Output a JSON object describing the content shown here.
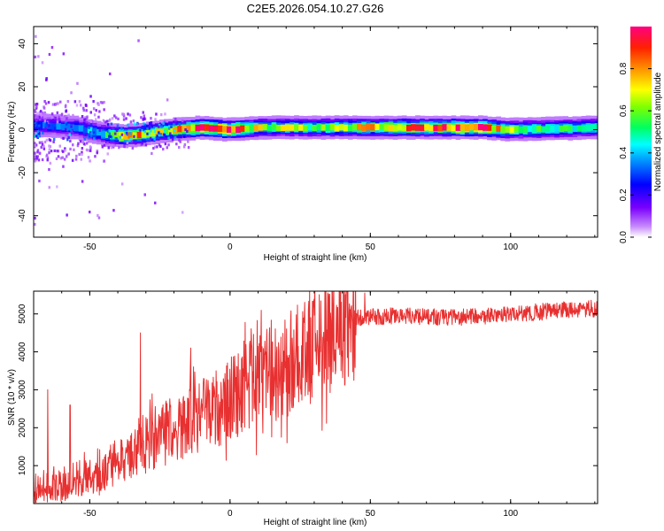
{
  "title": "C2E5.2026.054.10.27.G26",
  "chart_data": [
    {
      "type": "heatmap",
      "xlabel": "Height of straight line (km)",
      "ylabel": "Frequency (Hz)",
      "xlim": [
        -70,
        131
      ],
      "ylim": [
        -50,
        48
      ],
      "xticks": [
        "-50",
        "0",
        "50",
        "100"
      ],
      "yticks": [
        "-40",
        "-20",
        "0",
        "20",
        "40"
      ],
      "colorbar": {
        "label": "Normalized spectral amplitude",
        "range": [
          0,
          1
        ],
        "ticks": [
          "0.0",
          "0.2",
          "0.4",
          "0.6",
          "0.8"
        ]
      },
      "ridge": {
        "description": "dominant frequency ridge near 0 Hz",
        "points": [
          {
            "x": -68,
            "freq": 2,
            "amp": 0.3
          },
          {
            "x": -55,
            "freq": 1,
            "amp": 0.35
          },
          {
            "x": -45,
            "freq": -2,
            "amp": 0.45
          },
          {
            "x": -38,
            "freq": -3,
            "amp": 0.85
          },
          {
            "x": -30,
            "freq": -2,
            "amp": 0.75
          },
          {
            "x": -20,
            "freq": 0,
            "amp": 0.7
          },
          {
            "x": -10,
            "freq": 1,
            "amp": 0.85
          },
          {
            "x": 0,
            "freq": 0,
            "amp": 0.95
          },
          {
            "x": 10,
            "freq": 1,
            "amp": 0.6
          },
          {
            "x": 30,
            "freq": 1,
            "amp": 0.55
          },
          {
            "x": 60,
            "freq": 1,
            "amp": 0.75
          },
          {
            "x": 90,
            "freq": 1,
            "amp": 0.9
          },
          {
            "x": 100,
            "freq": 0,
            "amp": 0.55
          },
          {
            "x": 131,
            "freq": 1,
            "amp": 0.5
          }
        ]
      }
    },
    {
      "type": "line",
      "xlabel": "Height of straight line (km)",
      "ylabel": "SNR (10 * v/v)",
      "xlim": [
        -70,
        131
      ],
      "ylim": [
        0,
        5600
      ],
      "xticks": [
        "-50",
        "0",
        "50",
        "100"
      ],
      "yticks": [
        "1000",
        "2000",
        "3000",
        "4000",
        "5000"
      ],
      "color": "#e83030",
      "trend": {
        "x": [
          -70,
          -55,
          -45,
          -35,
          -25,
          -15,
          -5,
          5,
          15,
          25,
          35,
          45,
          60,
          80,
          100,
          120,
          131
        ],
        "y": [
          400,
          600,
          800,
          1400,
          1800,
          2200,
          2500,
          3000,
          3400,
          3900,
          4400,
          4900,
          4950,
          4900,
          5000,
          5100,
          5150
        ]
      },
      "spikes": [
        {
          "x": -65,
          "y": 3000
        },
        {
          "x": -57,
          "y": 2600
        },
        {
          "x": -32,
          "y": 4500
        },
        {
          "x": -14,
          "y": 4100
        },
        {
          "x": -5,
          "y": 3500
        },
        {
          "x": 48,
          "y": 5550
        }
      ]
    }
  ]
}
